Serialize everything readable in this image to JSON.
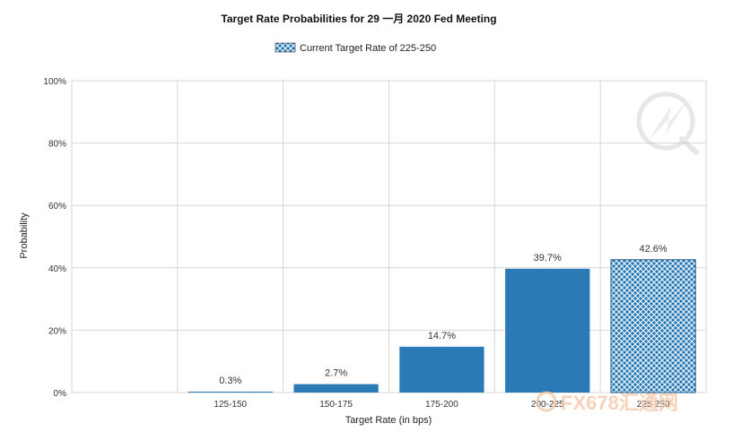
{
  "chart_data": {
    "type": "bar",
    "title": "Target Rate Probabilities for 29 一月 2020  Fed Meeting",
    "legend": {
      "label": "Current Target Rate of 225-250",
      "placement": "top-center"
    },
    "xlabel": "Target Rate (in bps)",
    "ylabel": "Probability",
    "categories": [
      "125-150",
      "150-175",
      "175-200",
      "200-225",
      "225-250"
    ],
    "values": [
      0.3,
      2.7,
      14.7,
      39.7,
      42.6
    ],
    "data_labels": [
      "0.3%",
      "2.7%",
      "14.7%",
      "39.7%",
      "42.6%"
    ],
    "current_category": "225-250",
    "ylim": [
      0,
      100
    ],
    "yticks": [
      0,
      20,
      40,
      60,
      80,
      100
    ],
    "ytick_labels": [
      "0%",
      "20%",
      "40%",
      "60%",
      "80%",
      "100%"
    ],
    "grid": true,
    "colors": {
      "bar": "#2a7ab6",
      "hatch_bg": "#2a7ab6",
      "hatch_line": "#ffffff",
      "grid": "#d6d6d6"
    }
  },
  "watermark": {
    "text": "FX678汇通网"
  }
}
